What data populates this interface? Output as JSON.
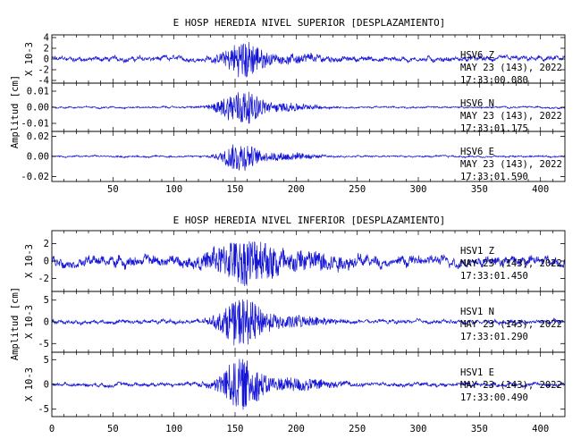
{
  "chart_data": [
    {
      "type": "line",
      "title": "E HOSP HEREDIA NIVEL SUPERIOR [DESPLAZAMIENTO]",
      "ylabel": "Amplitud [cm]",
      "xlim": [
        0,
        420
      ],
      "xticks": [
        50,
        100,
        150,
        200,
        250,
        300,
        350,
        400
      ],
      "line_color": "#1515d6",
      "channels": [
        {
          "station": "HSV6",
          "component": "Z",
          "date": "MAY 23 (143), 2022",
          "time": "17:33:00.080",
          "multiplier": "X 10-3",
          "ylim": [
            -4.5,
            4.5
          ],
          "yticks": [
            4,
            2,
            0,
            -2,
            -4
          ],
          "ytick_labels": [
            "4",
            "2",
            "0",
            "-2",
            "-4"
          ],
          "envelope": {
            "base": 0.35,
            "peak": 3.9,
            "peak_t": 158,
            "width": 16,
            "tail": 0.6,
            "tail_t": 205,
            "tail_w": 20
          }
        },
        {
          "station": "HSV6",
          "component": "N",
          "date": "MAY 23 (143), 2022",
          "time": "17:33:01.175",
          "multiplier": "",
          "ylim": [
            -0.015,
            0.015
          ],
          "yticks": [
            0.01,
            0.0,
            -0.01
          ],
          "ytick_labels": [
            "0.01",
            "0.00",
            "-0.01"
          ],
          "envelope": {
            "base": 0.0004,
            "peak": 0.0125,
            "peak_t": 155,
            "width": 18,
            "tail": 0.0025,
            "tail_t": 195,
            "tail_w": 22
          }
        },
        {
          "station": "HSV6",
          "component": "E",
          "date": "MAY 23 (143), 2022",
          "time": "17:33:01.590",
          "multiplier": "",
          "ylim": [
            -0.025,
            0.025
          ],
          "yticks": [
            0.02,
            0.0,
            -0.02
          ],
          "ytick_labels": [
            "0.02",
            "0.00",
            "-0.02"
          ],
          "envelope": {
            "base": 0.0007,
            "peak": 0.017,
            "peak_t": 154,
            "width": 14,
            "tail": 0.004,
            "tail_t": 190,
            "tail_w": 25
          }
        }
      ]
    },
    {
      "type": "line",
      "title": "E HOSP HEREDIA NIVEL INFERIOR [DESPLAZAMIENTO]",
      "ylabel": "Amplitud [cm]",
      "xlim": [
        0,
        420
      ],
      "xticks": [
        0,
        50,
        100,
        150,
        200,
        250,
        300,
        350,
        400
      ],
      "line_color": "#1515d6",
      "channels": [
        {
          "station": "HSV1",
          "component": "Z",
          "date": "MAY 23 (143), 2022",
          "time": "17:33:01.450",
          "multiplier": "X 10-3",
          "ylim": [
            -3.5,
            3.5
          ],
          "yticks": [
            2,
            0,
            -2
          ],
          "ytick_labels": [
            "2",
            "0",
            "-2"
          ],
          "envelope": {
            "base": 0.45,
            "peak": 2.8,
            "peak_t": 160,
            "width": 28,
            "tail": 0.8,
            "tail_t": 215,
            "tail_w": 30
          }
        },
        {
          "station": "HSV1",
          "component": "N",
          "date": "MAY 23 (143), 2022",
          "time": "17:33:01.290",
          "multiplier": "X 10-3",
          "ylim": [
            -7,
            7
          ],
          "yticks": [
            5,
            0,
            -5
          ],
          "ytick_labels": [
            "5",
            "0",
            "-5"
          ],
          "envelope": {
            "base": 0.35,
            "peak": 6.3,
            "peak_t": 156,
            "width": 18,
            "tail": 1.3,
            "tail_t": 200,
            "tail_w": 25
          }
        },
        {
          "station": "HSV1",
          "component": "E",
          "date": "MAY 23 (143), 2022",
          "time": "17:33:00.490",
          "multiplier": "X 10-3",
          "ylim": [
            -6.5,
            6.5
          ],
          "yticks": [
            5,
            0,
            -5
          ],
          "ytick_labels": [
            "5",
            "0",
            "-5"
          ],
          "envelope": {
            "base": 0.3,
            "peak": 5.8,
            "peak_t": 155,
            "width": 17,
            "tail": 1.3,
            "tail_t": 200,
            "tail_w": 28
          }
        }
      ]
    }
  ]
}
